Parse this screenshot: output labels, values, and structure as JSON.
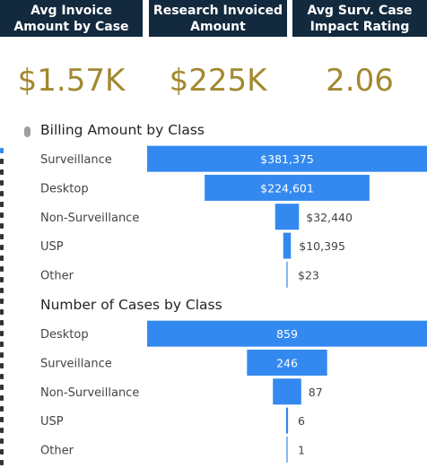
{
  "kpis": [
    {
      "label": "Avg Invoice Amount by Case",
      "value": "$1.57K"
    },
    {
      "label": "Research Invoiced Amount",
      "value": "$225K"
    },
    {
      "label": "Avg Surv. Case Impact Rating",
      "value": "2.06"
    }
  ],
  "colors": {
    "header_bg": "#13293d",
    "kpi_value": "#a3882f",
    "bar": "#3389f0"
  },
  "chart_data": [
    {
      "type": "bar",
      "subtype": "funnel",
      "title": "Billing Amount by Class",
      "categories": [
        "Surveillance",
        "Desktop",
        "Non-Surveillance",
        "USP",
        "Other"
      ],
      "values": [
        381375,
        224601,
        32440,
        10395,
        23
      ],
      "labels": [
        "$381,375",
        "$224,601",
        "$32,440",
        "$10,395",
        "$23"
      ]
    },
    {
      "type": "bar",
      "subtype": "funnel",
      "title": "Number of Cases by Class",
      "categories": [
        "Desktop",
        "Surveillance",
        "Non-Surveillance",
        "USP",
        "Other"
      ],
      "values": [
        859,
        246,
        87,
        6,
        1
      ],
      "labels": [
        "859",
        "246",
        "87",
        "6",
        "1"
      ]
    }
  ]
}
